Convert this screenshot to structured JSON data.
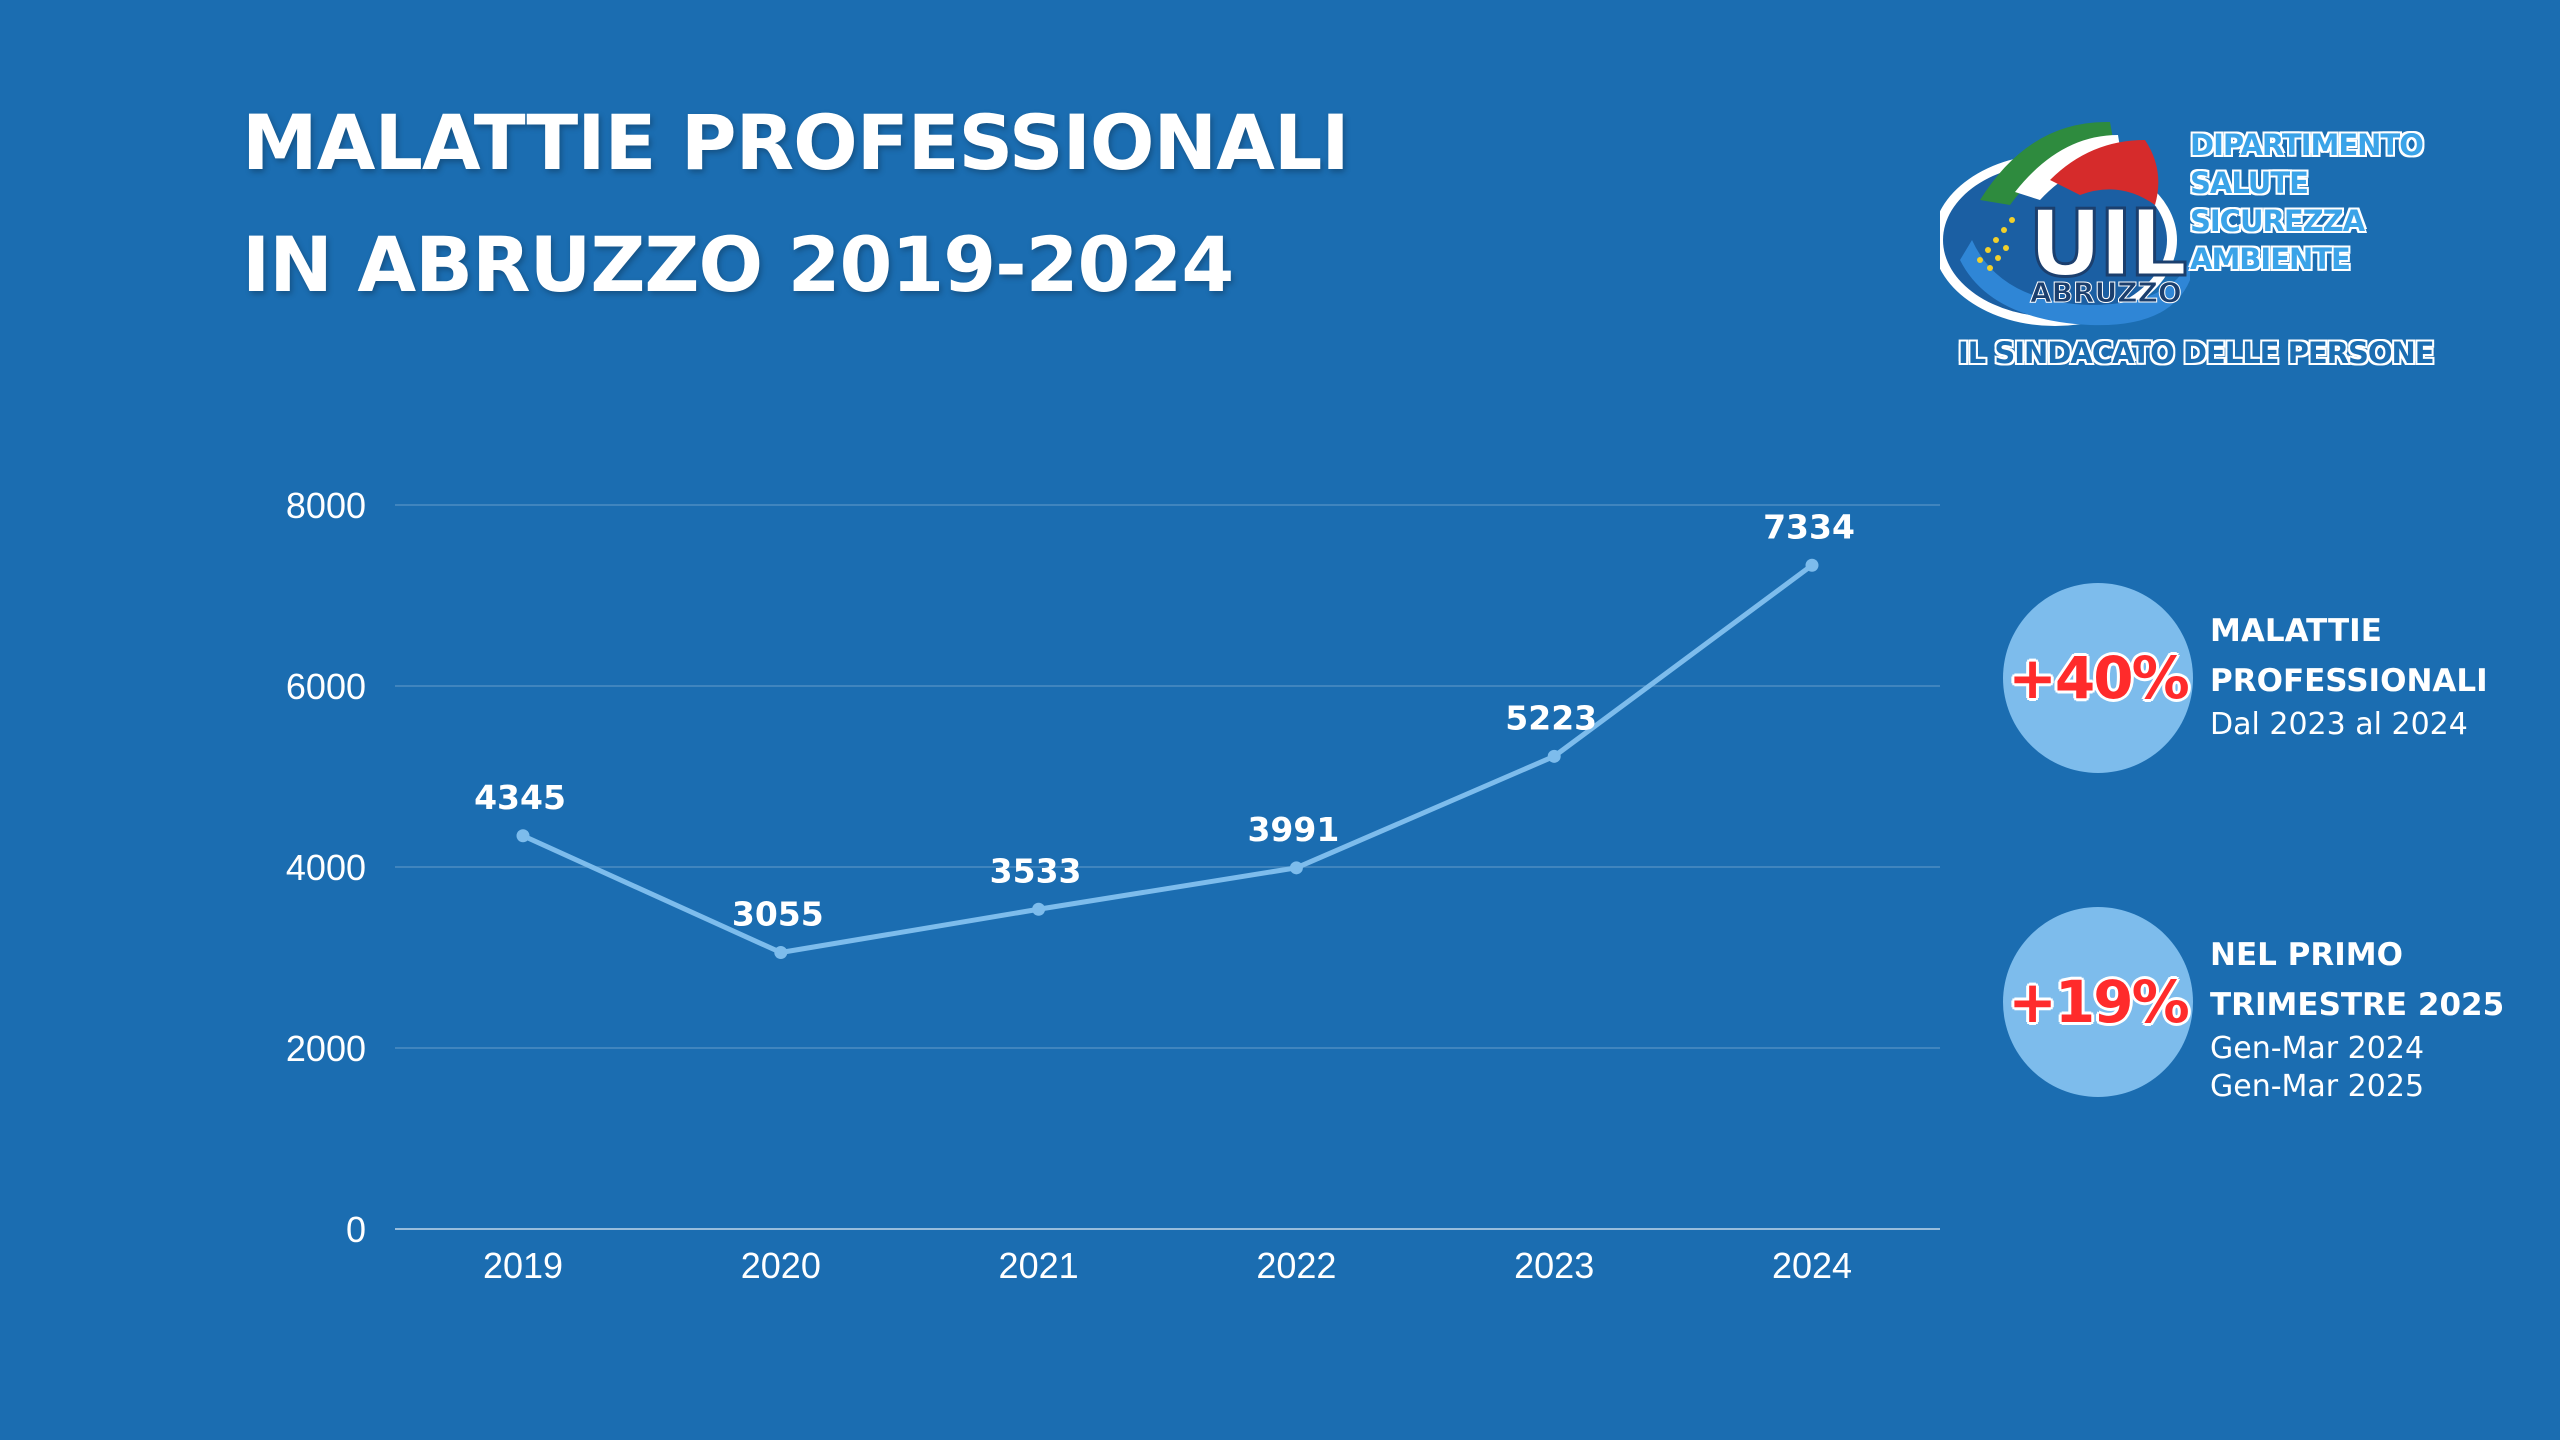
{
  "title": {
    "line1": "MALATTIE PROFESSIONALI",
    "line2": "IN ABRUZZO 2019-2024"
  },
  "logo": {
    "name": "UIL",
    "region": "ABRUZZO",
    "department": [
      "DIPARTIMENTO",
      "SALUTE",
      "SICUREZZA",
      "AMBIENTE"
    ],
    "tagline": "IL SINDACATO DELLE PERSONE"
  },
  "stats": [
    {
      "value": "+40%",
      "heading": [
        "MALATTIE",
        "PROFESSIONALI"
      ],
      "sub": [
        "Dal 2023 al 2024"
      ]
    },
    {
      "value": "+19%",
      "heading": [
        "NEL PRIMO",
        "TRIMESTRE 2025"
      ],
      "sub": [
        "Gen-Mar 2024",
        "Gen-Mar 2025"
      ]
    }
  ],
  "colors": {
    "background": "#1b6db1",
    "line": "#7dbcec",
    "accent_red": "#ff2b2b",
    "circle": "#7dbcec"
  },
  "chart_data": {
    "type": "line",
    "categories": [
      "2019",
      "2020",
      "2021",
      "2022",
      "2023",
      "2024"
    ],
    "values": [
      4345,
      3055,
      3533,
      3991,
      5223,
      7334
    ],
    "data_labels": [
      "4345",
      "3055",
      "3533",
      "3991",
      "5223",
      "7334"
    ],
    "ylim": [
      0,
      8000
    ],
    "yticks": [
      0,
      2000,
      4000,
      6000,
      8000
    ],
    "grid": true,
    "title": "",
    "xlabel": "",
    "ylabel": ""
  }
}
